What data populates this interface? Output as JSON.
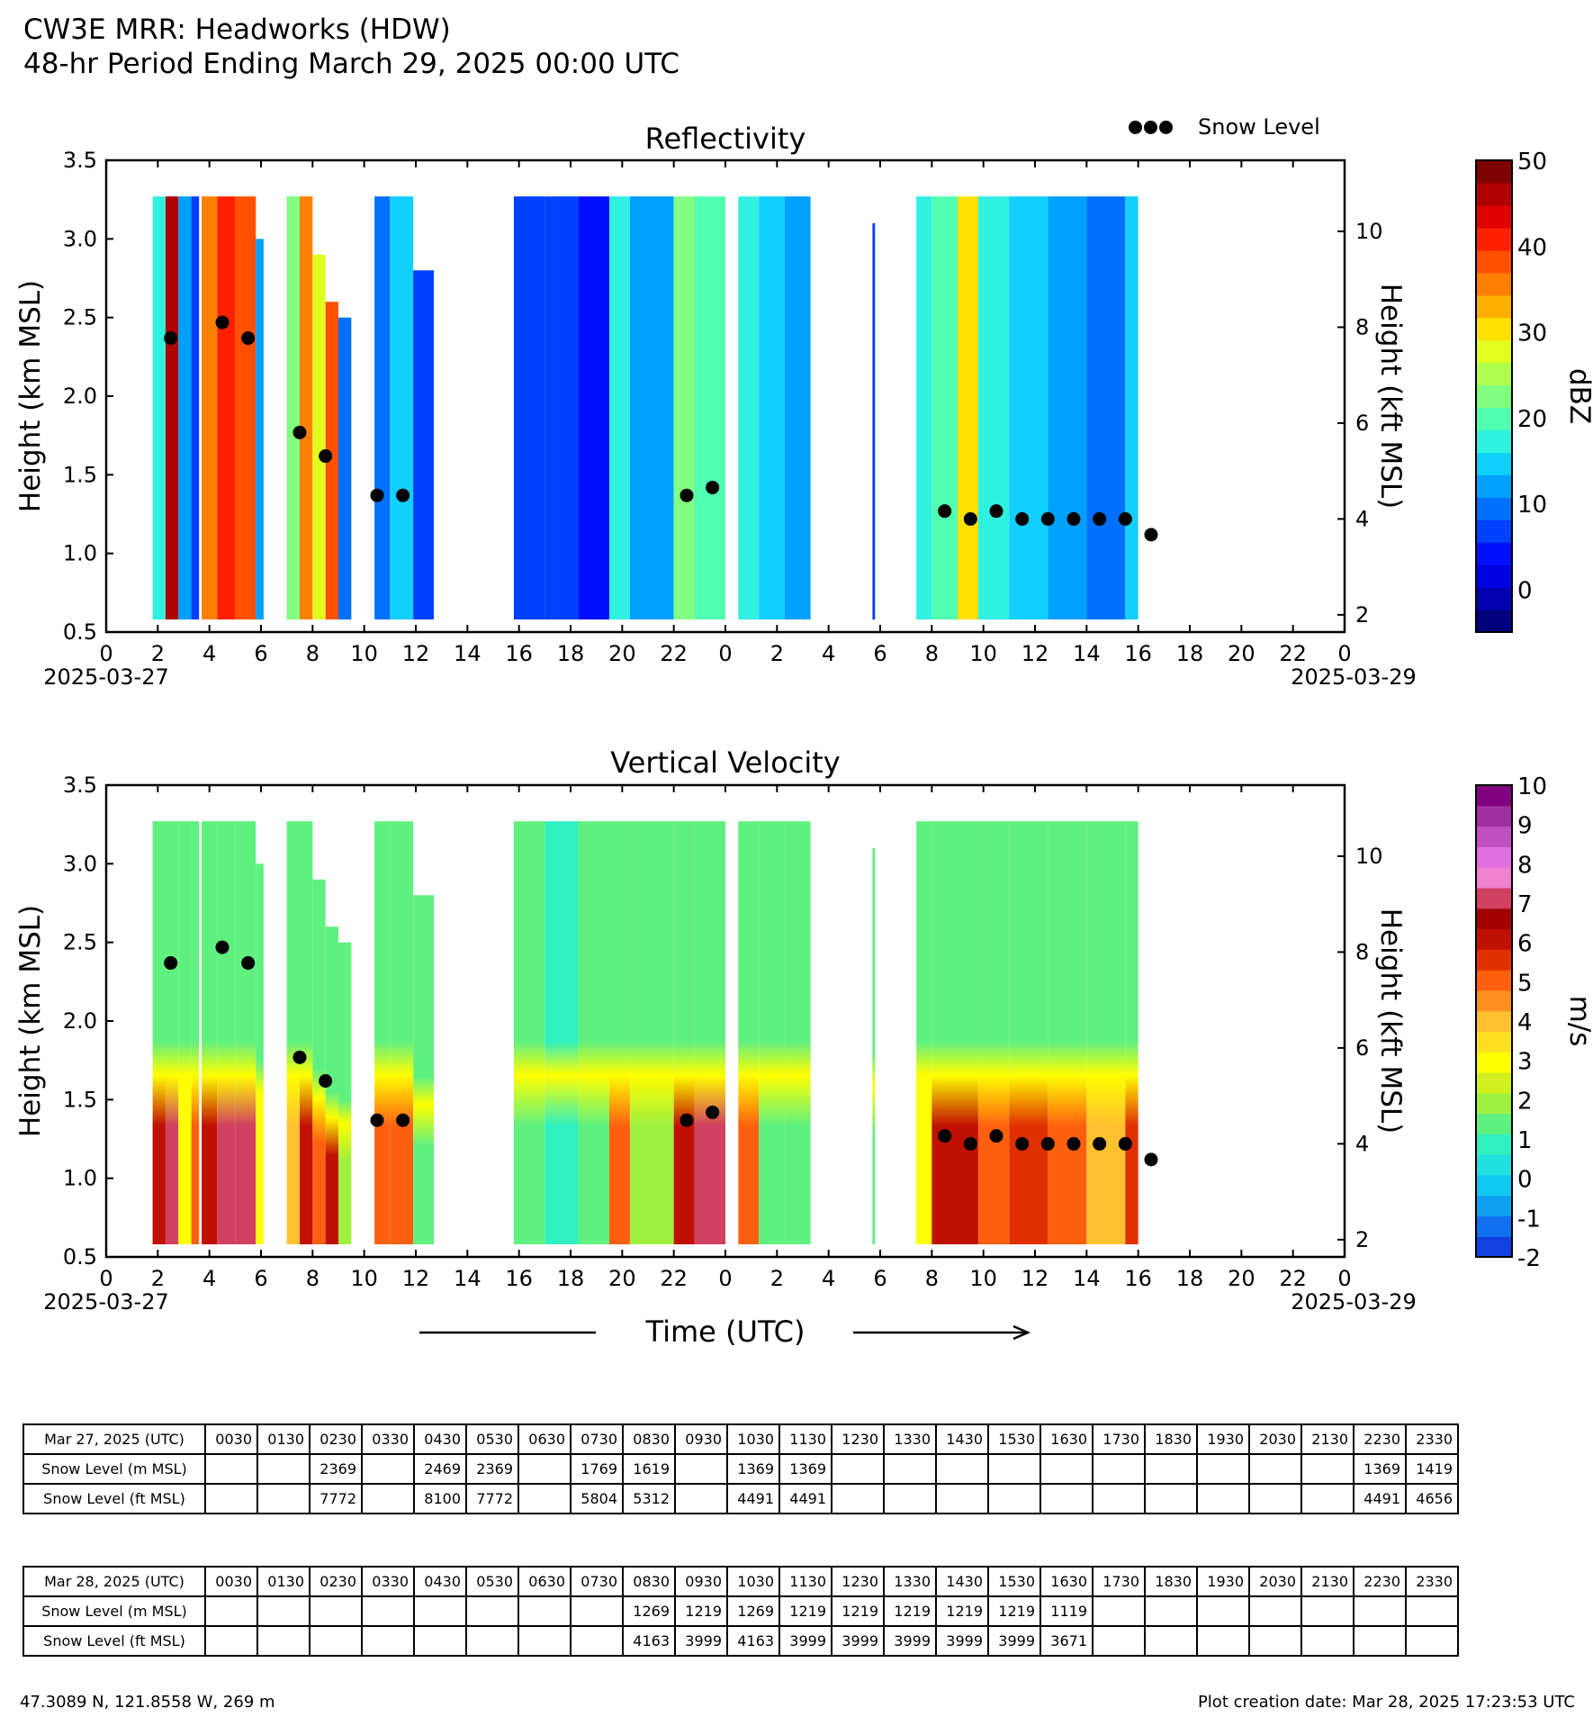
{
  "header": {
    "line1": "CW3E MRR: Headworks (HDW)",
    "line2": "48-hr Period Ending March 29, 2025 00:00 UTC"
  },
  "legend": {
    "snow_level_label": "Snow Level"
  },
  "chart_data": [
    {
      "type": "heatmap",
      "title": "Reflectivity",
      "ylabel": "Height (km MSL)",
      "ylabel_right": "Height (kft MSL)",
      "xlabel": "",
      "ylim": [
        0.5,
        3.5
      ],
      "yticks": [
        "0.5",
        "1.0",
        "1.5",
        "2.0",
        "2.5",
        "3.0",
        "3.5"
      ],
      "yticks_right": [
        "2",
        "4",
        "6",
        "8",
        "10"
      ],
      "xlim_hours": [
        0,
        48
      ],
      "xticks": [
        "0",
        "2",
        "4",
        "6",
        "8",
        "10",
        "12",
        "14",
        "16",
        "18",
        "20",
        "22",
        "0",
        "2",
        "4",
        "6",
        "8",
        "10",
        "12",
        "14",
        "16",
        "18",
        "20",
        "22",
        "0"
      ],
      "start_date_label": "2025-03-27",
      "end_date_label": "2025-03-29",
      "colorbar": {
        "label": "dBZ",
        "min": -5,
        "max": 50,
        "ticks": [
          "50",
          "40",
          "30",
          "20",
          "10",
          "0"
        ],
        "colors": [
          "#00007f",
          "#0000b0",
          "#0000e0",
          "#0010ff",
          "#0040ff",
          "#0070ff",
          "#00a0ff",
          "#10d0ff",
          "#30f0e0",
          "#50ffb0",
          "#80ff80",
          "#b0ff50",
          "#e0ff20",
          "#ffe000",
          "#ffb000",
          "#ff8000",
          "#ff5000",
          "#ff2000",
          "#e00000",
          "#b00000",
          "#7f0000"
        ]
      },
      "snow_level_points": [
        {
          "hour": 2.5,
          "km": 2.369
        },
        {
          "hour": 4.5,
          "km": 2.469
        },
        {
          "hour": 5.5,
          "km": 2.369
        },
        {
          "hour": 7.5,
          "km": 1.769
        },
        {
          "hour": 8.5,
          "km": 1.619
        },
        {
          "hour": 10.5,
          "km": 1.369
        },
        {
          "hour": 11.5,
          "km": 1.369
        },
        {
          "hour": 22.5,
          "km": 1.369
        },
        {
          "hour": 23.5,
          "km": 1.419
        },
        {
          "hour": 32.5,
          "km": 1.269
        },
        {
          "hour": 33.5,
          "km": 1.219
        },
        {
          "hour": 34.5,
          "km": 1.269
        },
        {
          "hour": 35.5,
          "km": 1.219
        },
        {
          "hour": 36.5,
          "km": 1.219
        },
        {
          "hour": 37.5,
          "km": 1.219
        },
        {
          "hour": 38.5,
          "km": 1.219
        },
        {
          "hour": 39.5,
          "km": 1.219
        },
        {
          "hour": 40.5,
          "km": 1.119
        }
      ],
      "echo_segments": [
        {
          "start": 1.8,
          "end": 2.3,
          "top_km": 3.27,
          "level": 18
        },
        {
          "start": 2.3,
          "end": 2.8,
          "top_km": 3.27,
          "level": 45
        },
        {
          "start": 2.8,
          "end": 3.3,
          "top_km": 3.27,
          "level": 12
        },
        {
          "start": 3.3,
          "end": 3.6,
          "top_km": 3.27,
          "level": 8
        },
        {
          "start": 3.7,
          "end": 4.3,
          "top_km": 3.27,
          "level": 35
        },
        {
          "start": 4.3,
          "end": 5.0,
          "top_km": 3.27,
          "level": 40
        },
        {
          "start": 5.0,
          "end": 5.8,
          "top_km": 3.27,
          "level": 38
        },
        {
          "start": 5.8,
          "end": 6.1,
          "top_km": 3.0,
          "level": 12
        },
        {
          "start": 7.0,
          "end": 7.5,
          "top_km": 3.27,
          "level": 22
        },
        {
          "start": 7.5,
          "end": 8.0,
          "top_km": 3.27,
          "level": 35
        },
        {
          "start": 8.0,
          "end": 8.5,
          "top_km": 2.9,
          "level": 28
        },
        {
          "start": 8.5,
          "end": 9.0,
          "top_km": 2.6,
          "level": 38
        },
        {
          "start": 9.0,
          "end": 9.5,
          "top_km": 2.5,
          "level": 10
        },
        {
          "start": 10.4,
          "end": 11.0,
          "top_km": 3.27,
          "level": 10
        },
        {
          "start": 11.0,
          "end": 11.9,
          "top_km": 3.27,
          "level": 14
        },
        {
          "start": 11.9,
          "end": 12.7,
          "top_km": 2.8,
          "level": 6
        },
        {
          "start": 15.8,
          "end": 17.0,
          "top_km": 3.27,
          "level": 6
        },
        {
          "start": 17.0,
          "end": 18.3,
          "top_km": 3.27,
          "level": 8
        },
        {
          "start": 18.3,
          "end": 19.5,
          "top_km": 3.27,
          "level": 5
        },
        {
          "start": 19.5,
          "end": 20.3,
          "top_km": 3.27,
          "level": 18
        },
        {
          "start": 20.3,
          "end": 22.0,
          "top_km": 3.27,
          "level": 12
        },
        {
          "start": 22.0,
          "end": 22.8,
          "top_km": 3.27,
          "level": 22
        },
        {
          "start": 22.8,
          "end": 24.0,
          "top_km": 3.27,
          "level": 20
        },
        {
          "start": 24.5,
          "end": 25.3,
          "top_km": 3.27,
          "level": 16
        },
        {
          "start": 25.3,
          "end": 26.3,
          "top_km": 3.27,
          "level": 14
        },
        {
          "start": 26.3,
          "end": 27.3,
          "top_km": 3.27,
          "level": 12
        },
        {
          "start": 29.7,
          "end": 29.8,
          "top_km": 3.1,
          "level": 6
        },
        {
          "start": 31.4,
          "end": 32.0,
          "top_km": 3.27,
          "level": 16
        },
        {
          "start": 32.0,
          "end": 33.0,
          "top_km": 3.27,
          "level": 20
        },
        {
          "start": 33.0,
          "end": 33.8,
          "top_km": 3.27,
          "level": 30
        },
        {
          "start": 33.8,
          "end": 35.0,
          "top_km": 3.27,
          "level": 16
        },
        {
          "start": 35.0,
          "end": 36.5,
          "top_km": 3.27,
          "level": 14
        },
        {
          "start": 36.5,
          "end": 38.0,
          "top_km": 3.27,
          "level": 12
        },
        {
          "start": 38.0,
          "end": 39.5,
          "top_km": 3.27,
          "level": 9
        },
        {
          "start": 39.5,
          "end": 40.0,
          "top_km": 3.27,
          "level": 15
        }
      ]
    },
    {
      "type": "heatmap",
      "title": "Vertical Velocity",
      "ylabel": "Height (km MSL)",
      "ylabel_right": "Height (kft MSL)",
      "xlabel": "Time (UTC)",
      "ylim": [
        0.5,
        3.5
      ],
      "yticks": [
        "0.5",
        "1.0",
        "1.5",
        "2.0",
        "2.5",
        "3.0",
        "3.5"
      ],
      "yticks_right": [
        "2",
        "4",
        "6",
        "8",
        "10"
      ],
      "xlim_hours": [
        0,
        48
      ],
      "xticks": [
        "0",
        "2",
        "4",
        "6",
        "8",
        "10",
        "12",
        "14",
        "16",
        "18",
        "20",
        "22",
        "0",
        "2",
        "4",
        "6",
        "8",
        "10",
        "12",
        "14",
        "16",
        "18",
        "20",
        "22",
        "0"
      ],
      "start_date_label": "2025-03-27",
      "end_date_label": "2025-03-29",
      "colorbar": {
        "label": "m/s",
        "min": -2,
        "max": 10,
        "ticks": [
          "10",
          "9",
          "8",
          "7",
          "6",
          "5",
          "4",
          "3",
          "2",
          "1",
          "0",
          "-1",
          "-2"
        ],
        "colors": [
          "#1040e0",
          "#1070f0",
          "#10a0f0",
          "#10c8f0",
          "#20e0e0",
          "#30f0c0",
          "#60f080",
          "#a0f040",
          "#d0f020",
          "#ffff00",
          "#ffe020",
          "#ffc030",
          "#ff9020",
          "#ff6010",
          "#e03000",
          "#c01000",
          "#a00000",
          "#d04060",
          "#f080d0",
          "#e070e0",
          "#c050c0",
          "#a030a0",
          "#800080"
        ]
      },
      "snow_level_points": [
        {
          "hour": 2.5,
          "km": 2.369
        },
        {
          "hour": 4.5,
          "km": 2.469
        },
        {
          "hour": 5.5,
          "km": 2.369
        },
        {
          "hour": 7.5,
          "km": 1.769
        },
        {
          "hour": 8.5,
          "km": 1.619
        },
        {
          "hour": 10.5,
          "km": 1.369
        },
        {
          "hour": 11.5,
          "km": 1.369
        },
        {
          "hour": 22.5,
          "km": 1.369
        },
        {
          "hour": 23.5,
          "km": 1.419
        },
        {
          "hour": 32.5,
          "km": 1.269
        },
        {
          "hour": 33.5,
          "km": 1.219
        },
        {
          "hour": 34.5,
          "km": 1.269
        },
        {
          "hour": 35.5,
          "km": 1.219
        },
        {
          "hour": 36.5,
          "km": 1.219
        },
        {
          "hour": 37.5,
          "km": 1.219
        },
        {
          "hour": 38.5,
          "km": 1.219
        },
        {
          "hour": 39.5,
          "km": 1.219
        },
        {
          "hour": 40.5,
          "km": 1.119
        }
      ],
      "echo_segments": [
        {
          "start": 1.8,
          "end": 2.3,
          "top_km": 3.27,
          "level": 6
        },
        {
          "start": 2.3,
          "end": 2.8,
          "top_km": 3.27,
          "level": 7
        },
        {
          "start": 2.8,
          "end": 3.3,
          "top_km": 3.27,
          "level": 3
        },
        {
          "start": 3.3,
          "end": 3.6,
          "top_km": 3.27,
          "level": 5
        },
        {
          "start": 3.7,
          "end": 4.3,
          "top_km": 3.27,
          "level": 6
        },
        {
          "start": 4.3,
          "end": 5.0,
          "top_km": 3.27,
          "level": 7
        },
        {
          "start": 5.0,
          "end": 5.8,
          "top_km": 3.27,
          "level": 7
        },
        {
          "start": 5.8,
          "end": 6.1,
          "top_km": 3.0,
          "level": 3
        },
        {
          "start": 7.0,
          "end": 7.5,
          "top_km": 3.27,
          "level": 4
        },
        {
          "start": 7.5,
          "end": 8.0,
          "top_km": 3.27,
          "level": 6
        },
        {
          "start": 8.0,
          "end": 8.5,
          "top_km": 2.9,
          "level": 5
        },
        {
          "start": 8.5,
          "end": 9.0,
          "top_km": 2.6,
          "level": 6
        },
        {
          "start": 9.0,
          "end": 9.5,
          "top_km": 2.5,
          "level": 2
        },
        {
          "start": 10.4,
          "end": 11.0,
          "top_km": 3.27,
          "level": 5
        },
        {
          "start": 11.0,
          "end": 11.9,
          "top_km": 3.27,
          "level": 5
        },
        {
          "start": 11.9,
          "end": 12.7,
          "top_km": 2.8,
          "level": 1.5
        },
        {
          "start": 15.8,
          "end": 17.0,
          "top_km": 3.27,
          "level": 1.5
        },
        {
          "start": 17.0,
          "end": 18.3,
          "top_km": 3.27,
          "level": 1
        },
        {
          "start": 18.3,
          "end": 19.5,
          "top_km": 3.27,
          "level": 1.5
        },
        {
          "start": 19.5,
          "end": 20.3,
          "top_km": 3.27,
          "level": 5
        },
        {
          "start": 20.3,
          "end": 22.0,
          "top_km": 3.27,
          "level": 2
        },
        {
          "start": 22.0,
          "end": 22.8,
          "top_km": 3.27,
          "level": 6
        },
        {
          "start": 22.8,
          "end": 24.0,
          "top_km": 3.27,
          "level": 7
        },
        {
          "start": 24.5,
          "end": 25.3,
          "top_km": 3.27,
          "level": 5
        },
        {
          "start": 25.3,
          "end": 26.3,
          "top_km": 3.27,
          "level": 1.5
        },
        {
          "start": 26.3,
          "end": 27.3,
          "top_km": 3.27,
          "level": 1.5
        },
        {
          "start": 29.7,
          "end": 29.8,
          "top_km": 3.1,
          "level": 1.5
        },
        {
          "start": 31.4,
          "end": 32.0,
          "top_km": 3.27,
          "level": 3
        },
        {
          "start": 32.0,
          "end": 33.0,
          "top_km": 3.27,
          "level": 6
        },
        {
          "start": 33.0,
          "end": 33.8,
          "top_km": 3.27,
          "level": 6
        },
        {
          "start": 33.8,
          "end": 35.0,
          "top_km": 3.27,
          "level": 5
        },
        {
          "start": 35.0,
          "end": 36.5,
          "top_km": 3.27,
          "level": 5.5
        },
        {
          "start": 36.5,
          "end": 38.0,
          "top_km": 3.27,
          "level": 5
        },
        {
          "start": 38.0,
          "end": 39.5,
          "top_km": 3.27,
          "level": 4
        },
        {
          "start": 39.5,
          "end": 40.0,
          "top_km": 3.27,
          "level": 5.5
        }
      ]
    }
  ],
  "tables": [
    {
      "date_label": "Mar 27, 2025 (UTC)",
      "times": [
        "0030",
        "0130",
        "0230",
        "0330",
        "0430",
        "0530",
        "0630",
        "0730",
        "0830",
        "0930",
        "1030",
        "1130",
        "1230",
        "1330",
        "1430",
        "1530",
        "1630",
        "1730",
        "1830",
        "1930",
        "2030",
        "2130",
        "2230",
        "2330"
      ],
      "rows": [
        {
          "label": "Snow Level (m MSL)",
          "values": [
            "",
            "",
            "2369",
            "",
            "2469",
            "2369",
            "",
            "1769",
            "1619",
            "",
            "1369",
            "1369",
            "",
            "",
            "",
            "",
            "",
            "",
            "",
            "",
            "",
            "",
            "1369",
            "1419"
          ]
        },
        {
          "label": "Snow Level (ft MSL)",
          "values": [
            "",
            "",
            "7772",
            "",
            "8100",
            "7772",
            "",
            "5804",
            "5312",
            "",
            "4491",
            "4491",
            "",
            "",
            "",
            "",
            "",
            "",
            "",
            "",
            "",
            "",
            "4491",
            "4656"
          ]
        }
      ]
    },
    {
      "date_label": "Mar 28, 2025 (UTC)",
      "times": [
        "0030",
        "0130",
        "0230",
        "0330",
        "0430",
        "0530",
        "0630",
        "0730",
        "0830",
        "0930",
        "1030",
        "1130",
        "1230",
        "1330",
        "1430",
        "1530",
        "1630",
        "1730",
        "1830",
        "1930",
        "2030",
        "2130",
        "2230",
        "2330"
      ],
      "rows": [
        {
          "label": "Snow Level (m MSL)",
          "values": [
            "",
            "",
            "",
            "",
            "",
            "",
            "",
            "",
            "1269",
            "1219",
            "1269",
            "1219",
            "1219",
            "1219",
            "1219",
            "1219",
            "1119",
            "",
            "",
            "",
            "",
            "",
            "",
            ""
          ]
        },
        {
          "label": "Snow Level (ft MSL)",
          "values": [
            "",
            "",
            "",
            "",
            "",
            "",
            "",
            "",
            "4163",
            "3999",
            "4163",
            "3999",
            "3999",
            "3999",
            "3999",
            "3999",
            "3671",
            "",
            "",
            "",
            "",
            "",
            "",
            ""
          ]
        }
      ]
    }
  ],
  "footer": {
    "location": "47.3089 N, 121.8558 W, 269 m",
    "creation": "Plot creation date: Mar 28, 2025 17:23:53 UTC"
  }
}
